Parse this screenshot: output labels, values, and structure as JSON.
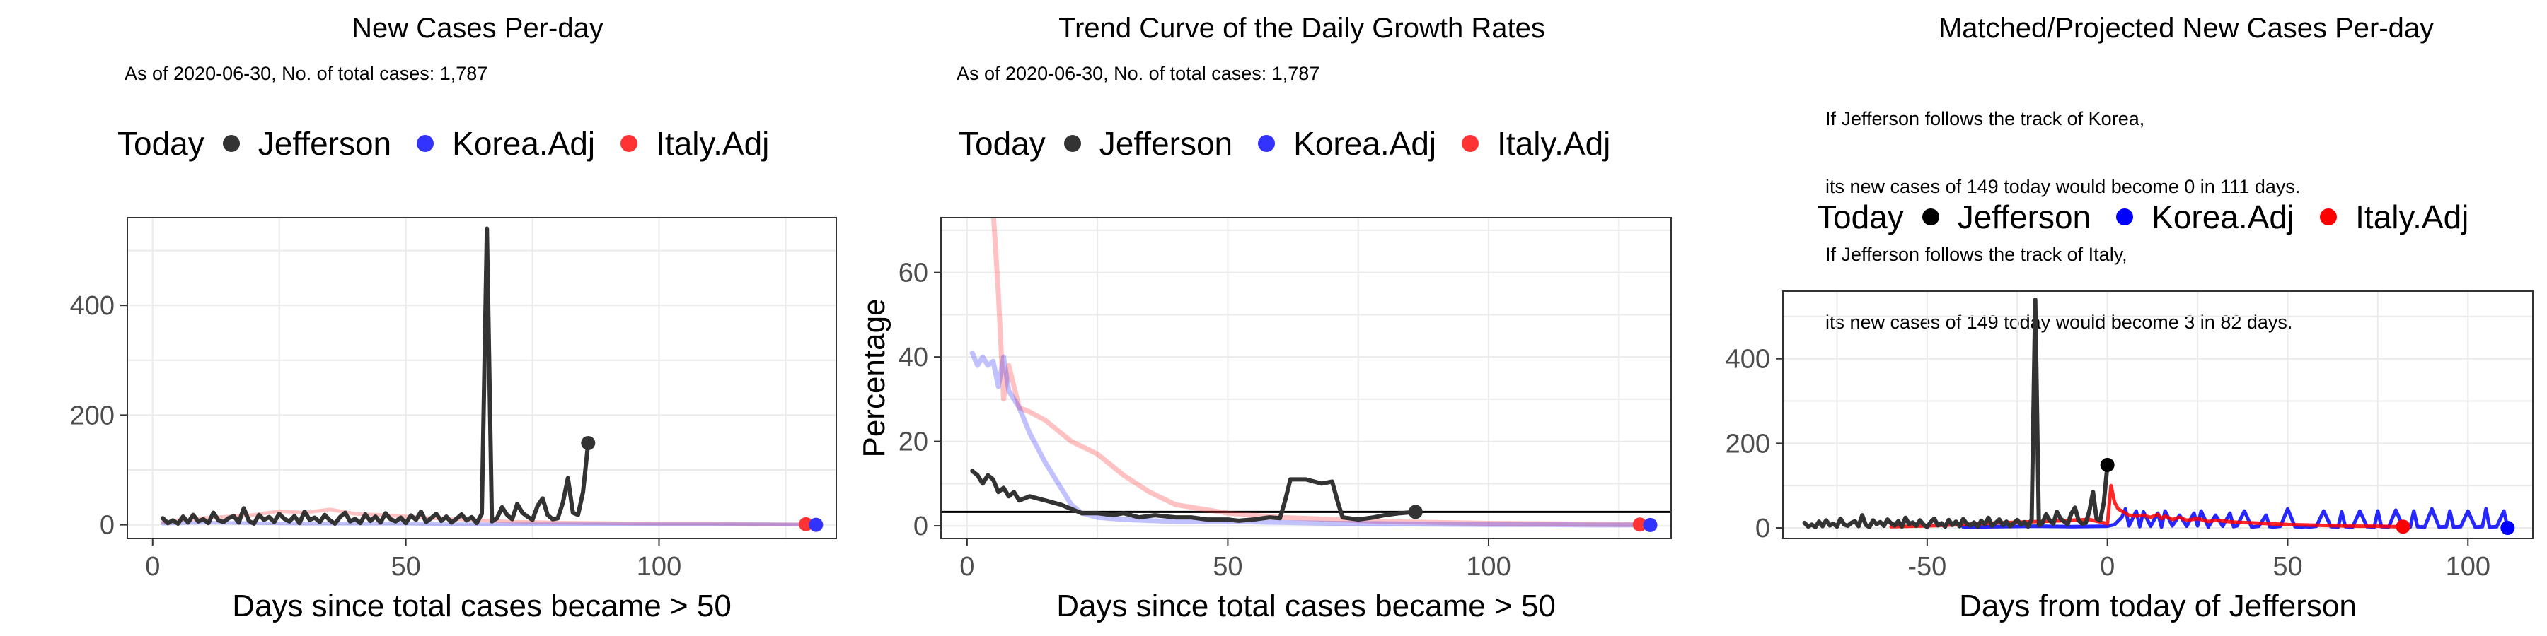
{
  "chart_data": [
    {
      "type": "line",
      "title": "New Cases Per-day",
      "subtitle": [
        "As of 2020-06-30, No. of total cases: 1,787"
      ],
      "xlabel": "Days since total cases became > 50",
      "ylabel": "",
      "xlim": [
        -5,
        135
      ],
      "ylim": [
        -25,
        560
      ],
      "xticks": [
        0,
        50,
        100
      ],
      "yticks": [
        0,
        200,
        400
      ],
      "legend": {
        "title": "Today",
        "position": "top",
        "items": [
          {
            "name": "Jefferson",
            "color": "#333333"
          },
          {
            "name": "Korea.Adj",
            "color": "#3333ff"
          },
          {
            "name": "Italy.Adj",
            "color": "#ff3333"
          }
        ]
      },
      "series": [
        {
          "name": "Italy.Adj",
          "color": "#ff3333",
          "opacity": 0.3,
          "width": 5,
          "x": [
            2,
            10,
            20,
            25,
            30,
            35,
            40,
            45,
            50,
            55,
            60,
            65,
            70,
            80,
            90,
            100,
            110,
            120,
            129
          ],
          "y": [
            5,
            12,
            18,
            25,
            22,
            28,
            20,
            18,
            15,
            12,
            10,
            8,
            6,
            4,
            3,
            2,
            2,
            1,
            1
          ]
        },
        {
          "name": "Korea.Adj",
          "color": "#3333ff",
          "opacity": 0.3,
          "width": 5,
          "x": [
            2,
            10,
            20,
            30,
            40,
            50,
            60,
            70,
            80,
            90,
            100,
            110,
            120,
            131
          ],
          "y": [
            2,
            4,
            3,
            2,
            2,
            2,
            1,
            1,
            1,
            1,
            1,
            1,
            1,
            0
          ]
        },
        {
          "name": "Jefferson",
          "color": "#333333",
          "opacity": 1,
          "width": 6,
          "x": [
            2,
            3,
            4,
            5,
            6,
            7,
            8,
            9,
            10,
            11,
            12,
            13,
            14,
            15,
            16,
            17,
            18,
            19,
            20,
            21,
            22,
            23,
            24,
            25,
            26,
            27,
            28,
            29,
            30,
            31,
            32,
            33,
            34,
            35,
            36,
            37,
            38,
            39,
            40,
            41,
            42,
            43,
            44,
            45,
            46,
            47,
            48,
            49,
            50,
            51,
            52,
            53,
            54,
            55,
            56,
            57,
            58,
            59,
            60,
            61,
            62,
            63,
            64,
            65,
            66,
            67,
            68,
            69,
            70,
            71,
            72,
            73,
            74,
            75,
            76,
            77,
            78,
            79,
            80,
            81,
            82,
            83,
            84,
            85,
            86
          ],
          "y": [
            12,
            3,
            8,
            2,
            15,
            4,
            18,
            6,
            10,
            3,
            22,
            8,
            5,
            12,
            16,
            4,
            30,
            7,
            2,
            18,
            9,
            14,
            5,
            20,
            11,
            6,
            16,
            3,
            24,
            9,
            13,
            5,
            18,
            8,
            2,
            14,
            22,
            6,
            11,
            3,
            19,
            7,
            15,
            4,
            21,
            10,
            6,
            13,
            3,
            17,
            9,
            24,
            5,
            12,
            20,
            7,
            15,
            4,
            11,
            19,
            8,
            14,
            3,
            20,
            540,
            6,
            12,
            32,
            18,
            10,
            38,
            22,
            15,
            9,
            34,
            48,
            18,
            10,
            12,
            40,
            85,
            22,
            18,
            60,
            149
          ]
        }
      ],
      "today_points": [
        {
          "series": "Jefferson",
          "x": 86,
          "y": 149,
          "color": "#333333"
        },
        {
          "series": "Italy.Adj",
          "x": 129,
          "y": 1,
          "color": "#ff3333"
        },
        {
          "series": "Korea.Adj",
          "x": 131,
          "y": 0,
          "color": "#3333ff"
        }
      ]
    },
    {
      "type": "line",
      "title": "Trend Curve of the Daily Growth Rates",
      "subtitle": [
        "As of 2020-06-30, No. of total cases: 1,787"
      ],
      "xlabel": "Days since total cases became > 50",
      "ylabel": "Percentage",
      "xlim": [
        -5,
        135
      ],
      "ylim": [
        -3,
        73
      ],
      "xticks": [
        0,
        50,
        100
      ],
      "yticks": [
        0,
        20,
        40,
        60
      ],
      "hline": 3.3,
      "legend": {
        "title": "Today",
        "position": "top",
        "items": [
          {
            "name": "Jefferson",
            "color": "#333333"
          },
          {
            "name": "Korea.Adj",
            "color": "#3333ff"
          },
          {
            "name": "Italy.Adj",
            "color": "#ff3333"
          }
        ]
      },
      "series": [
        {
          "name": "Italy.Adj",
          "color": "#ff3333",
          "opacity": 0.3,
          "width": 7,
          "x": [
            5,
            6,
            7,
            8,
            9,
            10,
            12,
            15,
            18,
            20,
            25,
            30,
            35,
            40,
            45,
            50,
            60,
            70,
            80,
            90,
            100,
            110,
            120,
            129
          ],
          "y": [
            75,
            55,
            30,
            38,
            33,
            28,
            27,
            25,
            22,
            20,
            17,
            12,
            8,
            5,
            4,
            3,
            2,
            1.5,
            1,
            0.8,
            0.6,
            0.5,
            0.4,
            0.3
          ]
        },
        {
          "name": "Korea.Adj",
          "color": "#3333ff",
          "opacity": 0.3,
          "width": 7,
          "x": [
            1,
            2,
            3,
            4,
            5,
            6,
            7,
            8,
            10,
            12,
            15,
            18,
            20,
            22,
            25,
            30,
            40,
            50,
            60,
            70,
            80,
            90,
            100,
            110,
            120,
            131
          ],
          "y": [
            41,
            38,
            40,
            38,
            39,
            33,
            40,
            32,
            28,
            22,
            15,
            9,
            5,
            3,
            2,
            1.5,
            1,
            1,
            0.8,
            0.6,
            0.5,
            0.4,
            0.3,
            0.3,
            0.2,
            0.2
          ]
        },
        {
          "name": "Jefferson",
          "color": "#333333",
          "opacity": 1,
          "width": 6,
          "x": [
            1,
            2,
            3,
            4,
            5,
            6,
            7,
            8,
            9,
            10,
            12,
            15,
            18,
            20,
            22,
            25,
            28,
            30,
            33,
            36,
            40,
            43,
            46,
            50,
            52,
            55,
            58,
            60,
            61,
            62,
            65,
            68,
            70,
            71,
            72,
            75,
            78,
            80,
            83,
            86
          ],
          "y": [
            13,
            12,
            10,
            12,
            11,
            8,
            9,
            7,
            8,
            6,
            7,
            6,
            5,
            4,
            3,
            3,
            2.5,
            3,
            2,
            2.5,
            2,
            2,
            1.5,
            1.5,
            1.2,
            1.5,
            2,
            1.8,
            6,
            11,
            11,
            10,
            10.5,
            6,
            2,
            1.5,
            2,
            2.5,
            3,
            3.3
          ]
        }
      ],
      "today_points": [
        {
          "series": "Jefferson",
          "x": 86,
          "y": 3.3,
          "color": "#333333"
        },
        {
          "series": "Italy.Adj",
          "x": 129,
          "y": 0.3,
          "color": "#ff3333"
        },
        {
          "series": "Korea.Adj",
          "x": 131,
          "y": 0.2,
          "color": "#3333ff"
        }
      ]
    },
    {
      "type": "line",
      "title": "Matched/Projected New Cases Per-day",
      "subtitle": [
        "If Jefferson follows the track of Korea,",
        "its new cases of 149 today would become 0 in 111 days.",
        "If Jefferson follows the track of Italy,",
        "its new cases of 149 today would become 3 in 82 days."
      ],
      "xlabel": "Days from today of Jefferson",
      "ylabel": "",
      "xlim": [
        -90,
        118
      ],
      "ylim": [
        -25,
        560
      ],
      "xticks": [
        -50,
        0,
        50,
        100
      ],
      "yticks": [
        0,
        200,
        400
      ],
      "legend": {
        "title": "Today",
        "position": "top",
        "items": [
          {
            "name": "Jefferson",
            "color": "#000000"
          },
          {
            "name": "Korea.Adj",
            "color": "#0000ff"
          },
          {
            "name": "Italy.Adj",
            "color": "#ff0000"
          }
        ]
      },
      "series": [
        {
          "name": "Korea.Adj",
          "color": "#0000ff",
          "opacity": 0.85,
          "width": 5,
          "x": [
            -40,
            -20,
            -10,
            0,
            2,
            4,
            5,
            6,
            8,
            9,
            10,
            12,
            14,
            15,
            16,
            18,
            20,
            22,
            24,
            25,
            26,
            28,
            30,
            32,
            34,
            35,
            36,
            38,
            40,
            42,
            44,
            45,
            46,
            48,
            50,
            52,
            54,
            55,
            56,
            58,
            60,
            62,
            64,
            65,
            66,
            68,
            70,
            72,
            74,
            75,
            76,
            78,
            80,
            82,
            84,
            85,
            86,
            88,
            90,
            92,
            94,
            95,
            96,
            98,
            100,
            102,
            104,
            105,
            106,
            108,
            110,
            111
          ],
          "y": [
            2,
            4,
            3,
            4,
            8,
            25,
            45,
            5,
            40,
            3,
            38,
            4,
            35,
            2,
            40,
            5,
            30,
            4,
            35,
            5,
            40,
            2,
            30,
            4,
            35,
            3,
            5,
            40,
            2,
            4,
            30,
            3,
            2,
            4,
            45,
            3,
            2,
            3,
            2,
            4,
            40,
            3,
            2,
            38,
            3,
            2,
            40,
            3,
            2,
            40,
            3,
            2,
            42,
            3,
            2,
            40,
            3,
            2,
            45,
            2,
            3,
            40,
            2,
            3,
            40,
            2,
            3,
            45,
            2,
            3,
            40,
            0
          ]
        },
        {
          "name": "Italy.Adj",
          "color": "#ff0000",
          "opacity": 0.85,
          "width": 5,
          "x": [
            -60,
            -50,
            -40,
            -30,
            -20,
            -10,
            -5,
            0,
            1,
            2,
            3,
            4,
            5,
            6,
            8,
            10,
            12,
            14,
            15,
            16,
            18,
            20,
            22,
            25,
            28,
            30,
            35,
            40,
            45,
            50,
            55,
            60,
            65,
            70,
            75,
            80,
            82
          ],
          "y": [
            3,
            5,
            8,
            12,
            15,
            18,
            20,
            10,
            100,
            60,
            45,
            40,
            35,
            30,
            28,
            30,
            25,
            32,
            22,
            28,
            20,
            25,
            18,
            22,
            15,
            18,
            14,
            12,
            10,
            8,
            7,
            6,
            5,
            4,
            4,
            3,
            3
          ]
        },
        {
          "name": "Jefferson",
          "color": "#333333",
          "opacity": 1,
          "width": 6,
          "x": [
            -84,
            -83,
            -82,
            -81,
            -80,
            -79,
            -78,
            -77,
            -76,
            -75,
            -74,
            -73,
            -72,
            -71,
            -70,
            -69,
            -68,
            -67,
            -66,
            -65,
            -64,
            -63,
            -62,
            -61,
            -60,
            -59,
            -58,
            -57,
            -56,
            -55,
            -54,
            -53,
            -52,
            -51,
            -50,
            -49,
            -48,
            -47,
            -46,
            -45,
            -44,
            -43,
            -42,
            -41,
            -40,
            -39,
            -38,
            -37,
            -36,
            -35,
            -34,
            -33,
            -32,
            -31,
            -30,
            -29,
            -28,
            -27,
            -26,
            -25,
            -24,
            -23,
            -22,
            -21,
            -20,
            -19,
            -18,
            -17,
            -16,
            -15,
            -14,
            -13,
            -12,
            -11,
            -10,
            -9,
            -8,
            -7,
            -6,
            -5,
            -4,
            -3,
            -2,
            -1,
            0
          ],
          "y": [
            12,
            3,
            8,
            2,
            15,
            4,
            18,
            6,
            10,
            3,
            22,
            8,
            5,
            12,
            16,
            4,
            30,
            7,
            2,
            18,
            9,
            14,
            5,
            20,
            11,
            6,
            16,
            3,
            24,
            9,
            13,
            5,
            18,
            8,
            2,
            14,
            22,
            6,
            11,
            3,
            19,
            7,
            15,
            4,
            21,
            10,
            6,
            13,
            3,
            17,
            9,
            24,
            5,
            12,
            20,
            7,
            15,
            4,
            11,
            19,
            8,
            14,
            3,
            20,
            540,
            6,
            12,
            32,
            18,
            10,
            38,
            22,
            15,
            9,
            34,
            48,
            18,
            10,
            12,
            40,
            85,
            22,
            18,
            60,
            149
          ]
        }
      ],
      "today_points": [
        {
          "series": "Jefferson",
          "x": 0,
          "y": 149,
          "color": "#000000"
        },
        {
          "series": "Italy.Adj",
          "x": 82,
          "y": 3,
          "color": "#ff0000"
        },
        {
          "series": "Korea.Adj",
          "x": 111,
          "y": 0,
          "color": "#0000ff"
        }
      ]
    }
  ]
}
